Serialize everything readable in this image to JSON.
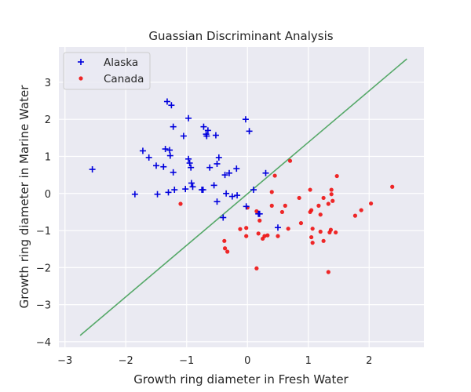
{
  "chart_data": {
    "type": "scatter",
    "title": "Guassian Discriminant Analysis",
    "xlabel": "Growth ring diameter in Fresh Water",
    "ylabel": "Growth ring diameter in Marine Water",
    "xlim": [
      -3.1,
      2.9
    ],
    "ylim": [
      -4.15,
      3.95
    ],
    "xticks": [
      -3,
      -2,
      -1,
      0,
      1,
      2
    ],
    "yticks": [
      -4,
      -3,
      -2,
      -1,
      0,
      1,
      2,
      3
    ],
    "xtick_labels": [
      "−3",
      "−2",
      "−1",
      "0",
      "1",
      "2"
    ],
    "ytick_labels": [
      "−4",
      "−3",
      "−2",
      "−1",
      "0",
      "1",
      "2",
      "3"
    ],
    "grid": true,
    "legend_position": "top-left",
    "colors": {
      "plot_background": "#eaeaf2",
      "grid": "#ffffff",
      "alaska": "#0000dd",
      "canada": "#ee1111",
      "boundary": "#55a868"
    },
    "series": [
      {
        "name": "Alaska",
        "marker": "plus",
        "points": [
          [
            -2.55,
            0.65
          ],
          [
            -1.85,
            -0.02
          ],
          [
            -1.72,
            1.15
          ],
          [
            -1.62,
            0.97
          ],
          [
            -1.5,
            0.75
          ],
          [
            -1.48,
            -0.02
          ],
          [
            -1.38,
            0.72
          ],
          [
            -1.35,
            1.2
          ],
          [
            -1.32,
            2.48
          ],
          [
            -1.3,
            0.03
          ],
          [
            -1.28,
            1.17
          ],
          [
            -1.27,
            1.02
          ],
          [
            -1.25,
            2.38
          ],
          [
            -1.22,
            1.8
          ],
          [
            -1.22,
            0.57
          ],
          [
            -1.2,
            0.1
          ],
          [
            -1.05,
            1.55
          ],
          [
            -1.02,
            0.12
          ],
          [
            -0.97,
            2.03
          ],
          [
            -0.97,
            0.93
          ],
          [
            -0.95,
            0.82
          ],
          [
            -0.93,
            0.7
          ],
          [
            -0.92,
            0.28
          ],
          [
            -0.9,
            0.18
          ],
          [
            -0.75,
            0.1
          ],
          [
            -0.73,
            0.1
          ],
          [
            -0.72,
            1.8
          ],
          [
            -0.68,
            1.6
          ],
          [
            -0.67,
            1.55
          ],
          [
            -0.65,
            1.7
          ],
          [
            -0.62,
            0.7
          ],
          [
            -0.55,
            0.22
          ],
          [
            -0.52,
            1.57
          ],
          [
            -0.5,
            0.8
          ],
          [
            -0.5,
            -0.22
          ],
          [
            -0.47,
            0.97
          ],
          [
            -0.4,
            -0.65
          ],
          [
            -0.37,
            0.5
          ],
          [
            -0.35,
            0.0
          ],
          [
            -0.3,
            0.55
          ],
          [
            -0.25,
            -0.08
          ],
          [
            -0.18,
            0.67
          ],
          [
            -0.17,
            -0.05
          ],
          [
            -0.03,
            2.0
          ],
          [
            -0.02,
            -0.35
          ],
          [
            0.03,
            1.68
          ],
          [
            0.1,
            0.1
          ],
          [
            0.18,
            -0.55
          ],
          [
            0.2,
            -0.55
          ],
          [
            0.3,
            0.55
          ],
          [
            0.5,
            -0.92
          ]
        ]
      },
      {
        "name": "Canada",
        "marker": "dot",
        "points": [
          [
            -1.1,
            -0.28
          ],
          [
            -0.38,
            -1.28
          ],
          [
            -0.37,
            -1.48
          ],
          [
            -0.33,
            -1.57
          ],
          [
            -0.12,
            -0.96
          ],
          [
            -0.02,
            -0.93
          ],
          [
            -0.02,
            -1.15
          ],
          [
            0.0,
            -0.38
          ],
          [
            0.15,
            -0.48
          ],
          [
            0.15,
            -2.02
          ],
          [
            0.18,
            -1.08
          ],
          [
            0.2,
            -0.73
          ],
          [
            0.25,
            -1.22
          ],
          [
            0.28,
            -1.15
          ],
          [
            0.33,
            -1.13
          ],
          [
            0.4,
            0.04
          ],
          [
            0.4,
            -0.33
          ],
          [
            0.45,
            0.48
          ],
          [
            0.5,
            -1.15
          ],
          [
            0.57,
            -0.5
          ],
          [
            0.62,
            -0.33
          ],
          [
            0.67,
            -0.95
          ],
          [
            0.7,
            0.88
          ],
          [
            0.85,
            -0.12
          ],
          [
            0.88,
            -0.8
          ],
          [
            1.03,
            0.1
          ],
          [
            1.03,
            -0.5
          ],
          [
            1.05,
            -1.18
          ],
          [
            1.05,
            -0.45
          ],
          [
            1.07,
            -0.95
          ],
          [
            1.07,
            -1.33
          ],
          [
            1.17,
            -0.33
          ],
          [
            1.2,
            -0.57
          ],
          [
            1.2,
            -1.03
          ],
          [
            1.25,
            -0.12
          ],
          [
            1.25,
            -1.28
          ],
          [
            1.33,
            -2.12
          ],
          [
            1.33,
            -0.28
          ],
          [
            1.35,
            -1.05
          ],
          [
            1.37,
            -0.98
          ],
          [
            1.38,
            0.1
          ],
          [
            1.38,
            -0.02
          ],
          [
            1.4,
            -0.2
          ],
          [
            1.45,
            -1.05
          ],
          [
            1.47,
            0.47
          ],
          [
            1.77,
            -0.6
          ],
          [
            1.87,
            -0.45
          ],
          [
            2.03,
            -0.27
          ],
          [
            2.38,
            0.18
          ]
        ]
      }
    ],
    "boundary_line": {
      "name": "",
      "points": [
        [
          -2.75,
          -3.83
        ],
        [
          2.62,
          3.63
        ]
      ]
    }
  }
}
